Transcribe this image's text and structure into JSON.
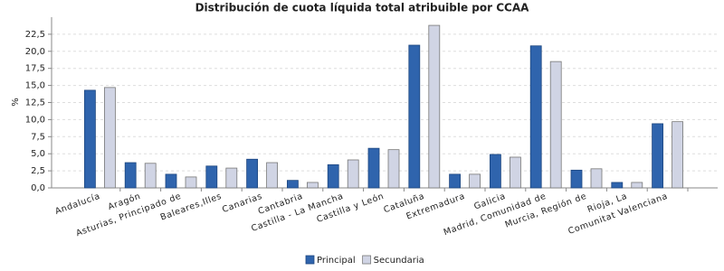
{
  "chart_data": {
    "type": "bar",
    "title": "Distribución de cuota líquida total atribuible por CCAA",
    "y_label": "%",
    "categories": [
      "Andalucía",
      "Aragón",
      "Asturias, Principado de",
      "Baleares,Illes",
      "Canarias",
      "Cantabria",
      "Castilla - La Mancha",
      "Castilla y León",
      "Cataluña",
      "Extremadura",
      "Galicia",
      "Madrid, Comunidad de",
      "Murcia, Región de",
      "Rioja, La",
      "Comunitat Valenciana"
    ],
    "series": [
      {
        "name": "Principal",
        "color": "#2f64ad",
        "values": [
          14.3,
          3.7,
          2.0,
          3.2,
          4.2,
          1.1,
          3.4,
          5.8,
          20.9,
          2.0,
          4.9,
          20.8,
          2.6,
          0.8,
          9.4
        ]
      },
      {
        "name": "Secundaria",
        "color": "#d0d4e4",
        "values": [
          14.7,
          3.6,
          1.6,
          2.9,
          3.7,
          0.8,
          4.1,
          5.6,
          23.8,
          2.0,
          4.5,
          18.5,
          2.8,
          0.8,
          9.7
        ]
      }
    ],
    "ylim": [
      0,
      25
    ],
    "yticks": [
      {
        "value": 0,
        "label": "0,0"
      },
      {
        "value": 2.5,
        "label": "2,5"
      },
      {
        "value": 5,
        "label": "5,0"
      },
      {
        "value": 7.5,
        "label": "7,5"
      },
      {
        "value": 10,
        "label": "10,0"
      },
      {
        "value": 12.5,
        "label": "12,5"
      },
      {
        "value": 15,
        "label": "15,0"
      },
      {
        "value": 17.5,
        "label": "17,5"
      },
      {
        "value": 20,
        "label": "20,0"
      },
      {
        "value": 22.5,
        "label": "22,5"
      }
    ],
    "grid": true,
    "legend": "bottom"
  }
}
